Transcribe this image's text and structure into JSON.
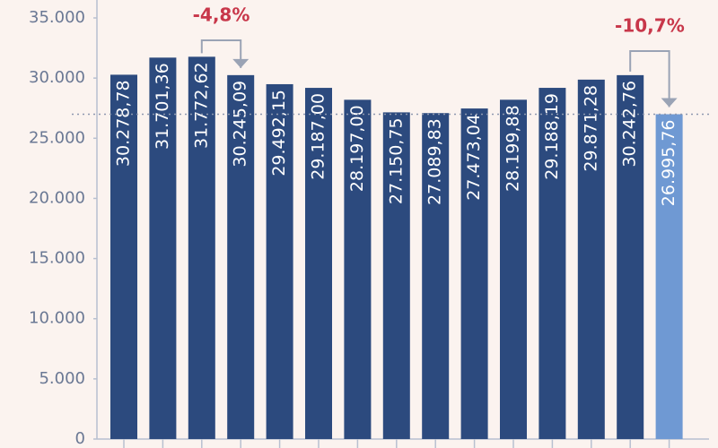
{
  "chart_data": {
    "type": "bar",
    "categories": [
      null,
      null,
      null,
      null,
      null,
      null,
      null,
      null,
      null,
      null,
      null,
      null,
      null,
      null,
      null
    ],
    "values": [
      30278.78,
      31701.36,
      31772.62,
      30245.09,
      29492.15,
      29187.0,
      28197.0,
      27150.75,
      27089.83,
      27473.04,
      28199.88,
      29188.19,
      29871.28,
      30242.76,
      26995.76
    ],
    "value_labels": [
      "30.278,78",
      "31.701,36",
      "31.772,62",
      "30.245,09",
      "29.492,15",
      "29.187,00",
      "28.197,00",
      "27.150,75",
      "27.089,83",
      "27.473,04",
      "28.199,88",
      "29.188,19",
      "29.871,28",
      "30.242,76",
      "26.995,76"
    ],
    "colors": [
      "#2c4a7e",
      "#2c4a7e",
      "#2c4a7e",
      "#2c4a7e",
      "#2c4a7e",
      "#2c4a7e",
      "#2c4a7e",
      "#2c4a7e",
      "#2c4a7e",
      "#2c4a7e",
      "#2c4a7e",
      "#2c4a7e",
      "#2c4a7e",
      "#2c4a7e",
      "#6f99d3"
    ],
    "ylim": [
      0,
      35000
    ],
    "yticks": [
      0,
      {
        "value": 5000,
        "label": "5.000"
      },
      {
        "value": 10000,
        "label": "10.000"
      },
      {
        "value": 15000,
        "label": "15.000"
      },
      {
        "value": 20000,
        "label": "20.000"
      },
      {
        "value": 25000,
        "label": "25.000"
      },
      {
        "value": 30000,
        "label": "30.000"
      },
      {
        "value": 35000,
        "label": "35.000"
      }
    ],
    "annotations": [
      "-4,8%",
      "-10,7%"
    ]
  }
}
